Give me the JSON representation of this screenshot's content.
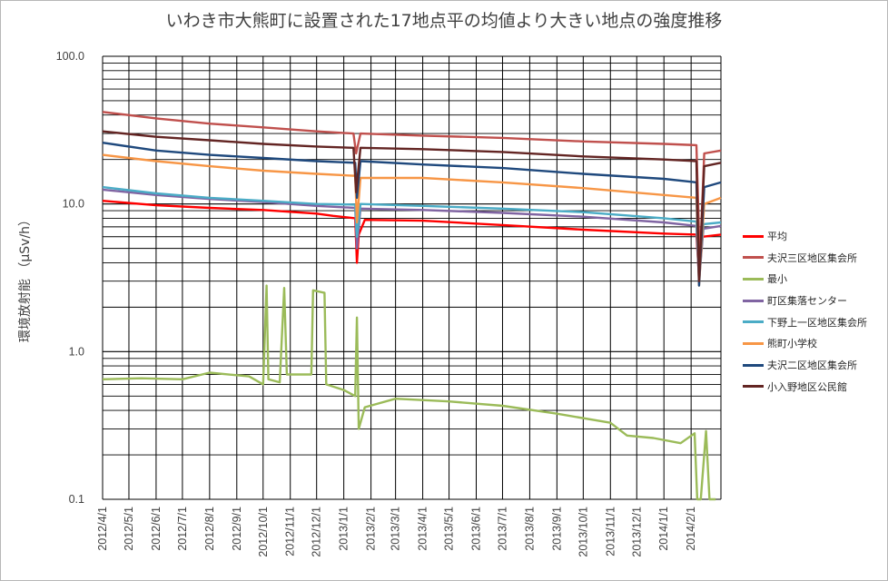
{
  "chart_data": {
    "type": "line",
    "title": "いわき市大熊町に設置された17地点平の均値より大きい地点の強度推移",
    "ylabel": "環境放射能 （μSv/h）",
    "xlabel": "",
    "yscale": "log",
    "ylim": [
      0.1,
      100
    ],
    "ytick_labels": [
      "100.0",
      "10.0",
      "1.0",
      "0.1"
    ],
    "xlim": [
      "2012-04-01",
      "2014-03-07"
    ],
    "xtick_labels": [
      "2012/4/1",
      "2012/5/1",
      "2012/6/1",
      "2012/7/1",
      "2012/8/1",
      "2012/9/1",
      "2012/10/1",
      "2012/11/1",
      "2012/12/1",
      "2013/1/1",
      "2013/2/1",
      "2013/3/1",
      "2013/4/1",
      "2013/5/1",
      "2013/6/1",
      "2013/7/1",
      "2013/8/1",
      "2013/9/1",
      "2013/10/1",
      "2013/11/1",
      "2013/12/1",
      "2014/1/1",
      "2014/2/1"
    ],
    "grid": "major and minor horizontal lines, major vertical lines",
    "legend_position": "right",
    "series": [
      {
        "name": "平均",
        "color": "#ff0000",
        "lw": 2.4,
        "points": [
          [
            "2012-04-01",
            10.5
          ],
          [
            "2012-06-01",
            9.8
          ],
          [
            "2012-08-01",
            9.4
          ],
          [
            "2012-10-01",
            9.1
          ],
          [
            "2012-12-01",
            8.6
          ],
          [
            "2012-12-20",
            8.3
          ],
          [
            "2013-01-14",
            8.0
          ],
          [
            "2013-01-16",
            4.0
          ],
          [
            "2013-01-18",
            6.2
          ],
          [
            "2013-01-25",
            7.8
          ],
          [
            "2013-04-01",
            7.7
          ],
          [
            "2013-07-01",
            7.2
          ],
          [
            "2013-10-01",
            6.7
          ],
          [
            "2014-01-01",
            6.3
          ],
          [
            "2014-02-07",
            6.2
          ],
          [
            "2014-02-10",
            3.2
          ],
          [
            "2014-02-14",
            6.0
          ],
          [
            "2014-03-07",
            6.2
          ]
        ]
      },
      {
        "name": "夫沢三区地区集会所",
        "color": "#c0504d",
        "lw": 2.4,
        "points": [
          [
            "2012-04-01",
            42
          ],
          [
            "2012-06-01",
            38
          ],
          [
            "2012-08-01",
            35
          ],
          [
            "2012-10-01",
            33
          ],
          [
            "2012-12-01",
            31
          ],
          [
            "2013-01-12",
            30
          ],
          [
            "2013-01-15",
            22
          ],
          [
            "2013-01-20",
            30
          ],
          [
            "2013-04-01",
            29
          ],
          [
            "2013-07-01",
            28
          ],
          [
            "2013-10-01",
            26.5
          ],
          [
            "2014-01-01",
            25.5
          ],
          [
            "2014-02-07",
            25
          ],
          [
            "2014-02-11",
            4
          ],
          [
            "2014-02-16",
            22
          ],
          [
            "2014-03-07",
            23
          ]
        ]
      },
      {
        "name": "最小",
        "color": "#9bbb59",
        "lw": 2.4,
        "points": [
          [
            "2012-04-01",
            0.65
          ],
          [
            "2012-05-15",
            0.66
          ],
          [
            "2012-07-01",
            0.65
          ],
          [
            "2012-08-01",
            0.72
          ],
          [
            "2012-09-15",
            0.68
          ],
          [
            "2012-10-01",
            0.6
          ],
          [
            "2012-10-05",
            2.8
          ],
          [
            "2012-10-07",
            0.65
          ],
          [
            "2012-10-20",
            0.62
          ],
          [
            "2012-10-25",
            2.7
          ],
          [
            "2012-10-28",
            0.7
          ],
          [
            "2012-11-25",
            0.7
          ],
          [
            "2012-11-27",
            2.6
          ],
          [
            "2012-12-10",
            2.5
          ],
          [
            "2012-12-12",
            0.6
          ],
          [
            "2013-01-01",
            0.55
          ],
          [
            "2013-01-14",
            0.5
          ],
          [
            "2013-01-16",
            1.7
          ],
          [
            "2013-01-18",
            0.3
          ],
          [
            "2013-01-25",
            0.42
          ],
          [
            "2013-03-01",
            0.48
          ],
          [
            "2013-05-01",
            0.46
          ],
          [
            "2013-07-01",
            0.43
          ],
          [
            "2013-09-01",
            0.38
          ],
          [
            "2013-11-01",
            0.33
          ],
          [
            "2013-11-20",
            0.27
          ],
          [
            "2013-12-20",
            0.26
          ],
          [
            "2014-01-20",
            0.24
          ],
          [
            "2014-02-05",
            0.28
          ],
          [
            "2014-02-08",
            0.1
          ],
          [
            "2014-02-12",
            0.1
          ],
          [
            "2014-02-18",
            0.29
          ],
          [
            "2014-02-22",
            0.1
          ],
          [
            "2014-03-01",
            0.1
          ]
        ]
      },
      {
        "name": "町区集落センター",
        "color": "#8064a2",
        "lw": 2.4,
        "points": [
          [
            "2012-04-01",
            12.5
          ],
          [
            "2012-06-01",
            11.5
          ],
          [
            "2012-08-01",
            10.8
          ],
          [
            "2012-10-01",
            10.3
          ],
          [
            "2012-12-01",
            9.7
          ],
          [
            "2013-01-14",
            9.4
          ],
          [
            "2013-01-16",
            5.0
          ],
          [
            "2013-01-20",
            9.3
          ],
          [
            "2013-04-01",
            9.1
          ],
          [
            "2013-07-01",
            8.7
          ],
          [
            "2013-10-01",
            8.2
          ],
          [
            "2014-01-01",
            7.5
          ],
          [
            "2014-02-07",
            7.1
          ],
          [
            "2014-02-10",
            3.0
          ],
          [
            "2014-02-15",
            6.8
          ],
          [
            "2014-03-07",
            7.1
          ]
        ]
      },
      {
        "name": "下野上一区地区集会所",
        "color": "#4bacc6",
        "lw": 2.4,
        "points": [
          [
            "2012-04-01",
            13.0
          ],
          [
            "2012-06-01",
            11.8
          ],
          [
            "2012-08-01",
            11.0
          ],
          [
            "2012-10-01",
            10.5
          ],
          [
            "2012-12-01",
            10.0
          ],
          [
            "2013-01-14",
            9.9
          ],
          [
            "2013-01-16",
            6.0
          ],
          [
            "2013-01-20",
            10.0
          ],
          [
            "2013-04-01",
            9.7
          ],
          [
            "2013-07-01",
            9.3
          ],
          [
            "2013-10-01",
            8.8
          ],
          [
            "2014-01-01",
            8.0
          ],
          [
            "2014-02-07",
            7.6
          ],
          [
            "2014-02-10",
            3.2
          ],
          [
            "2014-02-15",
            7.3
          ],
          [
            "2014-03-07",
            7.5
          ]
        ]
      },
      {
        "name": "熊町小学校",
        "color": "#f79646",
        "lw": 2.4,
        "points": [
          [
            "2012-04-01",
            21.5
          ],
          [
            "2012-06-01",
            19.5
          ],
          [
            "2012-08-01",
            18.0
          ],
          [
            "2012-10-01",
            16.8
          ],
          [
            "2012-12-01",
            16.0
          ],
          [
            "2013-01-14",
            15.5
          ],
          [
            "2013-01-16",
            7.5
          ],
          [
            "2013-01-20",
            15.0
          ],
          [
            "2013-04-01",
            15.0
          ],
          [
            "2013-07-01",
            14.0
          ],
          [
            "2013-10-01",
            12.8
          ],
          [
            "2014-01-01",
            11.5
          ],
          [
            "2014-02-07",
            11.0
          ],
          [
            "2014-02-10",
            2.8
          ],
          [
            "2014-02-16",
            10.0
          ],
          [
            "2014-03-07",
            11.0
          ]
        ]
      },
      {
        "name": "夫沢二区地区集会所",
        "color": "#1f497d",
        "lw": 2.4,
        "points": [
          [
            "2012-04-01",
            26.0
          ],
          [
            "2012-06-01",
            23.0
          ],
          [
            "2012-08-01",
            21.5
          ],
          [
            "2012-10-01",
            20.5
          ],
          [
            "2012-12-01",
            19.5
          ],
          [
            "2013-01-14",
            19.0
          ],
          [
            "2013-01-16",
            11.0
          ],
          [
            "2013-01-20",
            19.5
          ],
          [
            "2013-04-01",
            18.5
          ],
          [
            "2013-07-01",
            17.5
          ],
          [
            "2013-10-01",
            16.0
          ],
          [
            "2014-01-01",
            14.8
          ],
          [
            "2014-02-07",
            14.0
          ],
          [
            "2014-02-10",
            2.8
          ],
          [
            "2014-02-16",
            13.0
          ],
          [
            "2014-03-07",
            14.0
          ]
        ]
      },
      {
        "name": "小入野地区公民館",
        "color": "#632523",
        "lw": 2.4,
        "points": [
          [
            "2012-04-01",
            31.0
          ],
          [
            "2012-06-01",
            28.5
          ],
          [
            "2012-08-01",
            27.0
          ],
          [
            "2012-10-01",
            25.5
          ],
          [
            "2012-12-01",
            24.5
          ],
          [
            "2013-01-12",
            24.0
          ],
          [
            "2013-01-15",
            12.0
          ],
          [
            "2013-01-20",
            24.0
          ],
          [
            "2013-04-01",
            23.5
          ],
          [
            "2013-07-01",
            22.5
          ],
          [
            "2013-10-01",
            21.0
          ],
          [
            "2014-01-01",
            20.0
          ],
          [
            "2014-02-07",
            19.5
          ],
          [
            "2014-02-10",
            3.0
          ],
          [
            "2014-02-16",
            18.0
          ],
          [
            "2014-03-07",
            19.0
          ]
        ]
      }
    ]
  }
}
